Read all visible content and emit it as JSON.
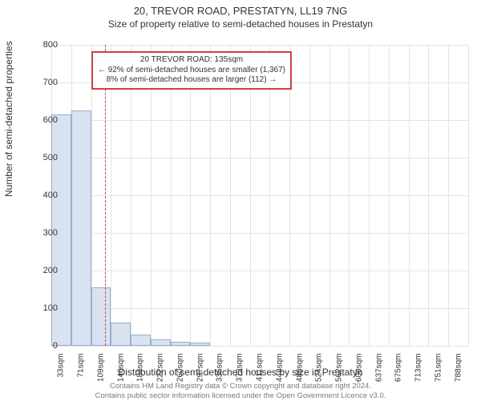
{
  "title": "20, TREVOR ROAD, PRESTATYN, LL19 7NG",
  "subtitle": "Size of property relative to semi-detached houses in Prestatyn",
  "y_label": "Number of semi-detached properties",
  "x_label": "Distribution of semi-detached houses by size in Prestatyn",
  "footer1": "Contains HM Land Registry data © Crown copyright and database right 2024.",
  "footer2": "Contains public sector information licensed under the Open Government Licence v3.0.",
  "chart": {
    "type": "histogram",
    "ylim": [
      0,
      800
    ],
    "ytick_step": 100,
    "background_color": "#ffffff",
    "grid_color": "#e4e4e4",
    "bar_fill": "#d8e2f0",
    "bar_stroke": "#9aaed0",
    "marker_color": "#d04040",
    "x_categories": [
      "33sqm",
      "71sqm",
      "109sqm",
      "146sqm",
      "184sqm",
      "222sqm",
      "260sqm",
      "297sqm",
      "335sqm",
      "373sqm",
      "411sqm",
      "448sqm",
      "486sqm",
      "524sqm",
      "562sqm",
      "600sqm",
      "637sqm",
      "675sqm",
      "713sqm",
      "751sqm",
      "788sqm"
    ],
    "values": [
      615,
      625,
      155,
      62,
      30,
      18,
      10,
      8,
      0,
      0,
      0,
      0,
      0,
      0,
      0,
      0,
      0,
      0,
      0,
      0,
      0
    ],
    "marker_at_index": 2.7,
    "annotation": {
      "line1": "20 TREVOR ROAD: 135sqm",
      "line2": "← 92% of semi-detached houses are smaller (1,367)",
      "line3": "8% of semi-detached houses are larger (112) →"
    }
  }
}
